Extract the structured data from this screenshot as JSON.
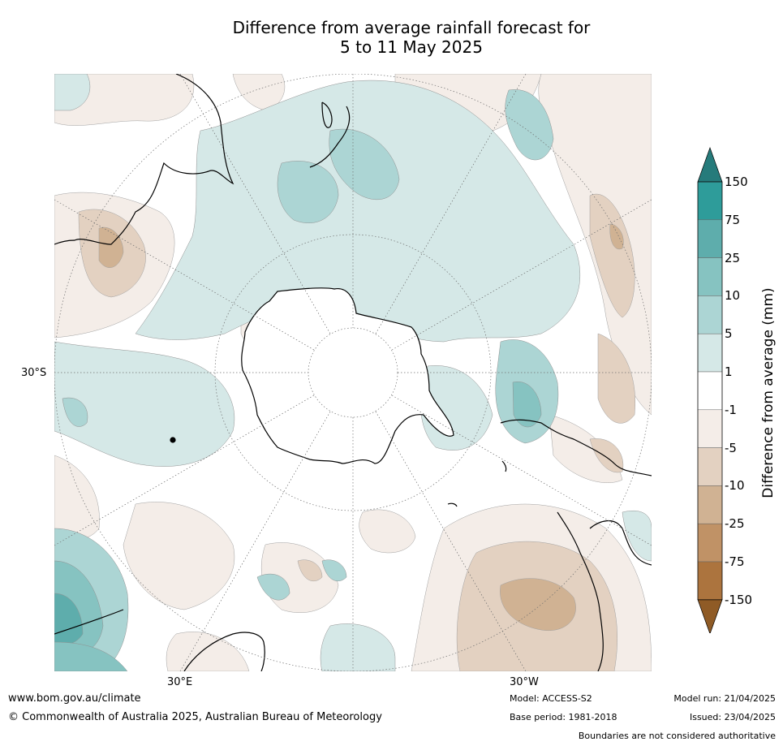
{
  "title": {
    "line1": "Difference from average rainfall forecast for",
    "line2": "5 to 11 May 2025"
  },
  "map": {
    "projection": "south polar stereographic",
    "lat_label": "30°S",
    "lon_labels": [
      "30°E",
      "30°W"
    ],
    "gridlines": true
  },
  "colorbar": {
    "title": "Difference from average (mm)",
    "ticks": [
      "150",
      "75",
      "25",
      "10",
      "5",
      "1",
      "-1",
      "-5",
      "-10",
      "-25",
      "-75",
      "-150"
    ],
    "bins": [
      {
        "range": "> 150",
        "color": "#267b7b"
      },
      {
        "range": "75 to 150",
        "color": "#2e9c9a"
      },
      {
        "range": "25 to 75",
        "color": "#5eadac"
      },
      {
        "range": "10 to 25",
        "color": "#86c3c1"
      },
      {
        "range": "5 to 10",
        "color": "#acd5d4"
      },
      {
        "range": "1 to 5",
        "color": "#d5e8e7"
      },
      {
        "range": "-1 to 1",
        "color": "#ffffff"
      },
      {
        "range": "-5 to -1",
        "color": "#f4ede8"
      },
      {
        "range": "-10 to -5",
        "color": "#e3d1c1"
      },
      {
        "range": "-25 to -10",
        "color": "#d0b293"
      },
      {
        "range": "-75 to -25",
        "color": "#c09266"
      },
      {
        "range": "-150 to -75",
        "color": "#ac743e"
      },
      {
        "range": "< -150",
        "color": "#8f5b26"
      }
    ]
  },
  "footer": {
    "website": "www.bom.gov.au/climate",
    "copyright": "© Commonwealth of Australia 2025, Australian Bureau of Meteorology",
    "model": "Model: ACCESS-S2",
    "base_period": "Base period: 1981-2018",
    "model_run": "Model run: 21/04/2025",
    "issued": "Issued: 23/04/2025",
    "disclaimer": "Boundaries are not considered authoritative"
  }
}
